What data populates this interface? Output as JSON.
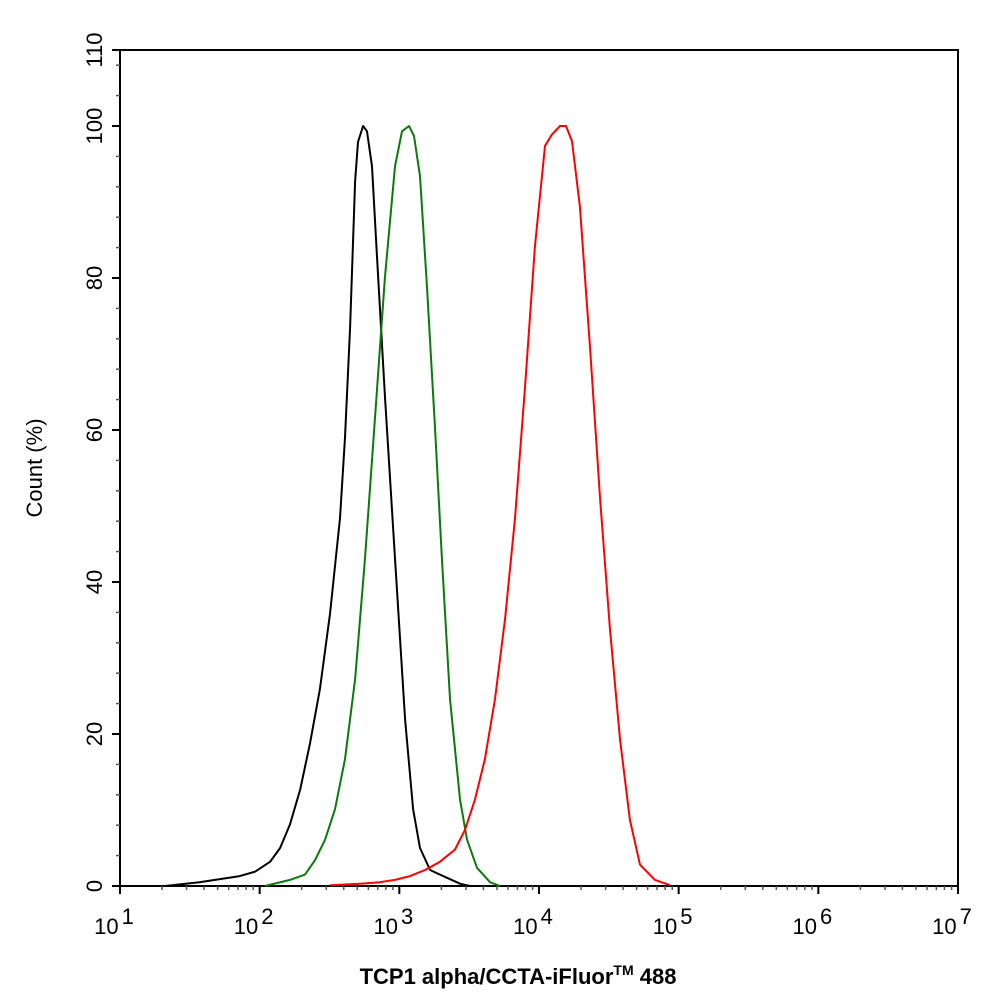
{
  "chart_data": {
    "type": "line",
    "xlabel": "TCP1 alpha/CCTA-iFluor",
    "xlabel_superscript": "TM",
    "xlabel_suffix": " 488",
    "ylabel": "Count  (%)",
    "x_scale": "log",
    "xlim": [
      10,
      10000000
    ],
    "ylim": [
      0,
      110
    ],
    "x_tick_bases": [
      "10",
      "10",
      "10",
      "10",
      "10",
      "10",
      "10"
    ],
    "x_tick_exponents": [
      "1",
      "2",
      "3",
      "4",
      "5",
      "6",
      "7"
    ],
    "y_ticks": [
      "0",
      "20",
      "40",
      "60",
      "80",
      "100",
      "110"
    ],
    "grid": false,
    "series": [
      {
        "color": "#000000",
        "x": [
          21,
          37,
          72,
          93,
          119,
          140,
          165,
          195,
          229,
          270,
          319,
          376,
          408,
          444,
          482,
          506,
          550,
          587,
          637,
          692,
          789,
          931,
          1099,
          1254,
          1407,
          1660,
          1955,
          2718,
          3206
        ],
        "y": [
          0,
          0.5,
          1.3,
          1.9,
          3.2,
          5.0,
          8.1,
          12.7,
          18.7,
          25.9,
          35.8,
          48.4,
          59.0,
          73.5,
          92.7,
          97.9,
          100,
          99.3,
          94.7,
          82.8,
          64.3,
          43.1,
          21.9,
          10.1,
          5.0,
          2.1,
          1.5,
          0.3,
          0
        ]
      },
      {
        "color": "#0a7a0a",
        "x": [
          109,
          165,
          211,
          249,
          294,
          346,
          408,
          482,
          568,
          670,
          789,
          931,
          1045,
          1173,
          1274,
          1407,
          1578,
          1800,
          2018,
          2305,
          2718,
          3050,
          3597,
          4457,
          5260
        ],
        "y": [
          0,
          0.8,
          1.5,
          3.4,
          6.1,
          10.1,
          16.7,
          27.2,
          43.1,
          61.6,
          80.2,
          94.7,
          99.3,
          100,
          98.7,
          93.4,
          78.8,
          60.3,
          43.1,
          24.6,
          11.4,
          6.1,
          2.4,
          0.5,
          0
        ]
      },
      {
        "color": "#ff0000",
        "x": [
          319,
          522,
          727,
          931,
          1191,
          1527,
          1955,
          2502,
          2951,
          3483,
          4102,
          4842,
          5717,
          6729,
          7943,
          9354,
          11040,
          12390,
          14130,
          15600,
          17220,
          19640,
          23170,
          27350,
          32210,
          38020,
          44770,
          52840,
          67610,
          86700
        ],
        "y": [
          0.1,
          0.3,
          0.5,
          0.8,
          1.3,
          2.1,
          3.2,
          4.8,
          7.4,
          11.4,
          16.7,
          24.6,
          35.2,
          48.4,
          65.6,
          84.1,
          97.4,
          98.9,
          100,
          100,
          98.0,
          89.4,
          70.9,
          51.1,
          33.9,
          19.3,
          8.7,
          2.8,
          0.8,
          0.1
        ]
      }
    ]
  }
}
